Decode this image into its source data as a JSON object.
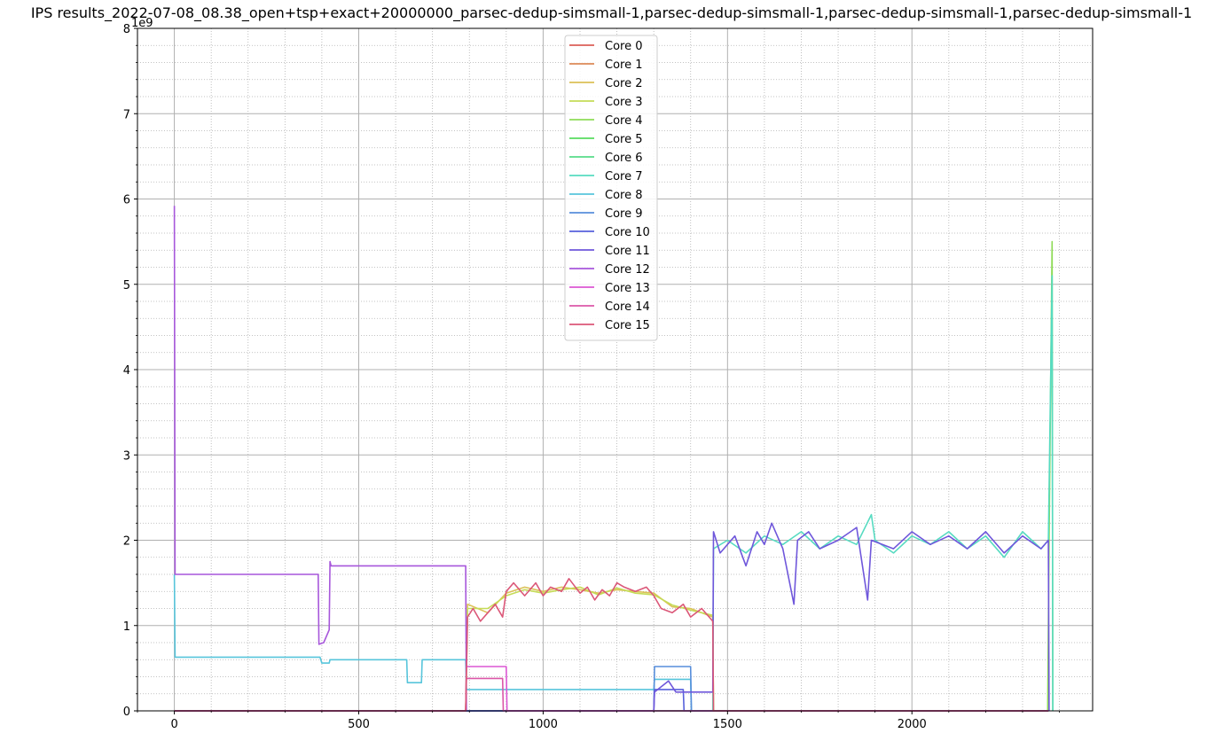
{
  "chart_data": {
    "type": "line",
    "title": "IPS results_2022-07-08_08.38_open+tsp+exact+20000000_parsec-dedup-simsmall-1,parsec-dedup-simsmall-1,parsec-dedup-simsmall-1,parsec-dedup-simsmall-1",
    "xlabel": "",
    "ylabel": "",
    "y_offset_text": "1e9",
    "xlim": [
      -100,
      2490
    ],
    "ylim": [
      0,
      8
    ],
    "x_ticks": [
      0,
      500,
      1000,
      1500,
      2000
    ],
    "x_tick_labels": [
      "0",
      "500",
      "1000",
      "1500",
      "2000"
    ],
    "y_ticks": [
      0,
      1,
      2,
      3,
      4,
      5,
      6,
      7,
      8
    ],
    "y_tick_labels": [
      "0",
      "1",
      "2",
      "3",
      "4",
      "5",
      "6",
      "7",
      "8"
    ],
    "grid": "major solid, minor dotted",
    "legend_position": "upper center",
    "series": [
      {
        "name": "Core 0",
        "color": "#db5f57",
        "points": [
          [
            0,
            0
          ],
          [
            2370,
            0
          ]
        ]
      },
      {
        "name": "Core 1",
        "color": "#db8a57",
        "points": [
          [
            0,
            0
          ],
          [
            2370,
            0
          ]
        ]
      },
      {
        "name": "Core 2",
        "color": "#dbc157",
        "points": [
          [
            0,
            0
          ],
          [
            790,
            0
          ],
          [
            795,
            1.25
          ],
          [
            850,
            1.15
          ],
          [
            900,
            1.38
          ],
          [
            950,
            1.45
          ],
          [
            1000,
            1.4
          ],
          [
            1050,
            1.45
          ],
          [
            1100,
            1.42
          ],
          [
            1150,
            1.38
          ],
          [
            1200,
            1.42
          ],
          [
            1250,
            1.4
          ],
          [
            1300,
            1.38
          ],
          [
            1350,
            1.22
          ],
          [
            1400,
            1.2
          ],
          [
            1460,
            1.1
          ],
          [
            1462,
            0
          ],
          [
            2370,
            0
          ]
        ]
      },
      {
        "name": "Core 3",
        "color": "#c5db57",
        "points": [
          [
            0,
            0
          ],
          [
            790,
            0
          ],
          [
            795,
            1.2
          ],
          [
            850,
            1.2
          ],
          [
            900,
            1.35
          ],
          [
            950,
            1.42
          ],
          [
            1000,
            1.38
          ],
          [
            1050,
            1.42
          ],
          [
            1100,
            1.45
          ],
          [
            1150,
            1.36
          ],
          [
            1200,
            1.44
          ],
          [
            1250,
            1.38
          ],
          [
            1300,
            1.36
          ],
          [
            1350,
            1.24
          ],
          [
            1400,
            1.18
          ],
          [
            1460,
            1.12
          ],
          [
            1462,
            0
          ],
          [
            2370,
            0
          ]
        ]
      },
      {
        "name": "Core 4",
        "color": "#8edb57",
        "points": [
          [
            0,
            0
          ],
          [
            2368,
            0
          ],
          [
            2372,
            2.0
          ],
          [
            2380,
            5.5
          ],
          [
            2382,
            0
          ]
        ]
      },
      {
        "name": "Core 5",
        "color": "#57db5f",
        "points": [
          [
            0,
            0
          ],
          [
            2370,
            0
          ]
        ]
      },
      {
        "name": "Core 6",
        "color": "#57db8a",
        "points": [
          [
            0,
            0
          ],
          [
            2370,
            0
          ]
        ]
      },
      {
        "name": "Core 7",
        "color": "#57dbc1",
        "points": [
          [
            0,
            0
          ],
          [
            1460,
            0
          ],
          [
            1462,
            1.9
          ],
          [
            1500,
            2.0
          ],
          [
            1550,
            1.85
          ],
          [
            1600,
            2.05
          ],
          [
            1650,
            1.95
          ],
          [
            1700,
            2.1
          ],
          [
            1750,
            1.9
          ],
          [
            1800,
            2.05
          ],
          [
            1850,
            1.95
          ],
          [
            1890,
            2.3
          ],
          [
            1900,
            2.0
          ],
          [
            1950,
            1.85
          ],
          [
            2000,
            2.05
          ],
          [
            2050,
            1.95
          ],
          [
            2100,
            2.1
          ],
          [
            2150,
            1.9
          ],
          [
            2200,
            2.05
          ],
          [
            2250,
            1.8
          ],
          [
            2300,
            2.1
          ],
          [
            2350,
            1.9
          ],
          [
            2370,
            2.0
          ],
          [
            2380,
            5.1
          ],
          [
            2382,
            0
          ]
        ]
      },
      {
        "name": "Core 8",
        "color": "#57c5db",
        "points": [
          [
            0,
            1.6
          ],
          [
            2,
            0.63
          ],
          [
            395,
            0.63
          ],
          [
            400,
            0.56
          ],
          [
            420,
            0.56
          ],
          [
            422,
            0.6
          ],
          [
            630,
            0.6
          ],
          [
            632,
            0.33
          ],
          [
            670,
            0.33
          ],
          [
            672,
            0.6
          ],
          [
            790,
            0.6
          ],
          [
            792,
            0.25
          ],
          [
            1300,
            0.25
          ],
          [
            1302,
            0.37
          ],
          [
            1400,
            0.37
          ],
          [
            1402,
            0
          ],
          [
            2370,
            0
          ]
        ]
      },
      {
        "name": "Core 9",
        "color": "#578edb",
        "points": [
          [
            0,
            0
          ],
          [
            1300,
            0
          ],
          [
            1302,
            0.52
          ],
          [
            1400,
            0.52
          ],
          [
            1402,
            0
          ],
          [
            2370,
            0
          ]
        ]
      },
      {
        "name": "Core 10",
        "color": "#5761db",
        "points": [
          [
            0,
            0
          ],
          [
            1300,
            0
          ],
          [
            1302,
            0.25
          ],
          [
            1380,
            0.25
          ],
          [
            1382,
            0
          ],
          [
            2370,
            0
          ]
        ]
      },
      {
        "name": "Core 11",
        "color": "#6f57db",
        "points": [
          [
            0,
            0
          ],
          [
            1300,
            0
          ],
          [
            1302,
            0.22
          ],
          [
            1340,
            0.35
          ],
          [
            1360,
            0.22
          ],
          [
            1460,
            0.22
          ],
          [
            1462,
            2.1
          ],
          [
            1480,
            1.85
          ],
          [
            1520,
            2.05
          ],
          [
            1550,
            1.7
          ],
          [
            1580,
            2.1
          ],
          [
            1600,
            1.95
          ],
          [
            1620,
            2.2
          ],
          [
            1650,
            1.9
          ],
          [
            1680,
            1.25
          ],
          [
            1690,
            2.0
          ],
          [
            1720,
            2.1
          ],
          [
            1750,
            1.9
          ],
          [
            1800,
            2.0
          ],
          [
            1850,
            2.15
          ],
          [
            1880,
            1.3
          ],
          [
            1890,
            2.0
          ],
          [
            1950,
            1.9
          ],
          [
            2000,
            2.1
          ],
          [
            2050,
            1.95
          ],
          [
            2100,
            2.05
          ],
          [
            2150,
            1.9
          ],
          [
            2200,
            2.1
          ],
          [
            2250,
            1.85
          ],
          [
            2300,
            2.05
          ],
          [
            2350,
            1.9
          ],
          [
            2370,
            2.0
          ],
          [
            2372,
            0
          ]
        ]
      },
      {
        "name": "Core 12",
        "color": "#a757db",
        "points": [
          [
            0,
            5.92
          ],
          [
            2,
            1.6
          ],
          [
            390,
            1.6
          ],
          [
            392,
            0.78
          ],
          [
            405,
            0.8
          ],
          [
            420,
            0.95
          ],
          [
            422,
            1.75
          ],
          [
            425,
            1.7
          ],
          [
            790,
            1.7
          ],
          [
            792,
            0
          ]
        ]
      },
      {
        "name": "Core 13",
        "color": "#db57d3",
        "points": [
          [
            0,
            0
          ],
          [
            790,
            0
          ],
          [
            792,
            0.52
          ],
          [
            900,
            0.52
          ],
          [
            902,
            0
          ],
          [
            2370,
            0
          ]
        ]
      },
      {
        "name": "Core 14",
        "color": "#db57a8",
        "points": [
          [
            0,
            0
          ],
          [
            790,
            0
          ],
          [
            792,
            0.38
          ],
          [
            890,
            0.38
          ],
          [
            892,
            0
          ],
          [
            2370,
            0
          ]
        ]
      },
      {
        "name": "Core 15",
        "color": "#db5778",
        "points": [
          [
            0,
            0
          ],
          [
            790,
            0
          ],
          [
            795,
            1.1
          ],
          [
            810,
            1.2
          ],
          [
            830,
            1.05
          ],
          [
            850,
            1.15
          ],
          [
            870,
            1.25
          ],
          [
            890,
            1.1
          ],
          [
            900,
            1.4
          ],
          [
            920,
            1.5
          ],
          [
            950,
            1.35
          ],
          [
            980,
            1.5
          ],
          [
            1000,
            1.35
          ],
          [
            1020,
            1.45
          ],
          [
            1050,
            1.4
          ],
          [
            1070,
            1.55
          ],
          [
            1100,
            1.38
          ],
          [
            1120,
            1.45
          ],
          [
            1140,
            1.3
          ],
          [
            1160,
            1.42
          ],
          [
            1180,
            1.35
          ],
          [
            1200,
            1.5
          ],
          [
            1220,
            1.45
          ],
          [
            1250,
            1.4
          ],
          [
            1280,
            1.45
          ],
          [
            1300,
            1.35
          ],
          [
            1320,
            1.2
          ],
          [
            1350,
            1.15
          ],
          [
            1380,
            1.25
          ],
          [
            1400,
            1.1
          ],
          [
            1430,
            1.2
          ],
          [
            1460,
            1.05
          ],
          [
            1462,
            0
          ],
          [
            2370,
            0
          ]
        ]
      }
    ]
  }
}
